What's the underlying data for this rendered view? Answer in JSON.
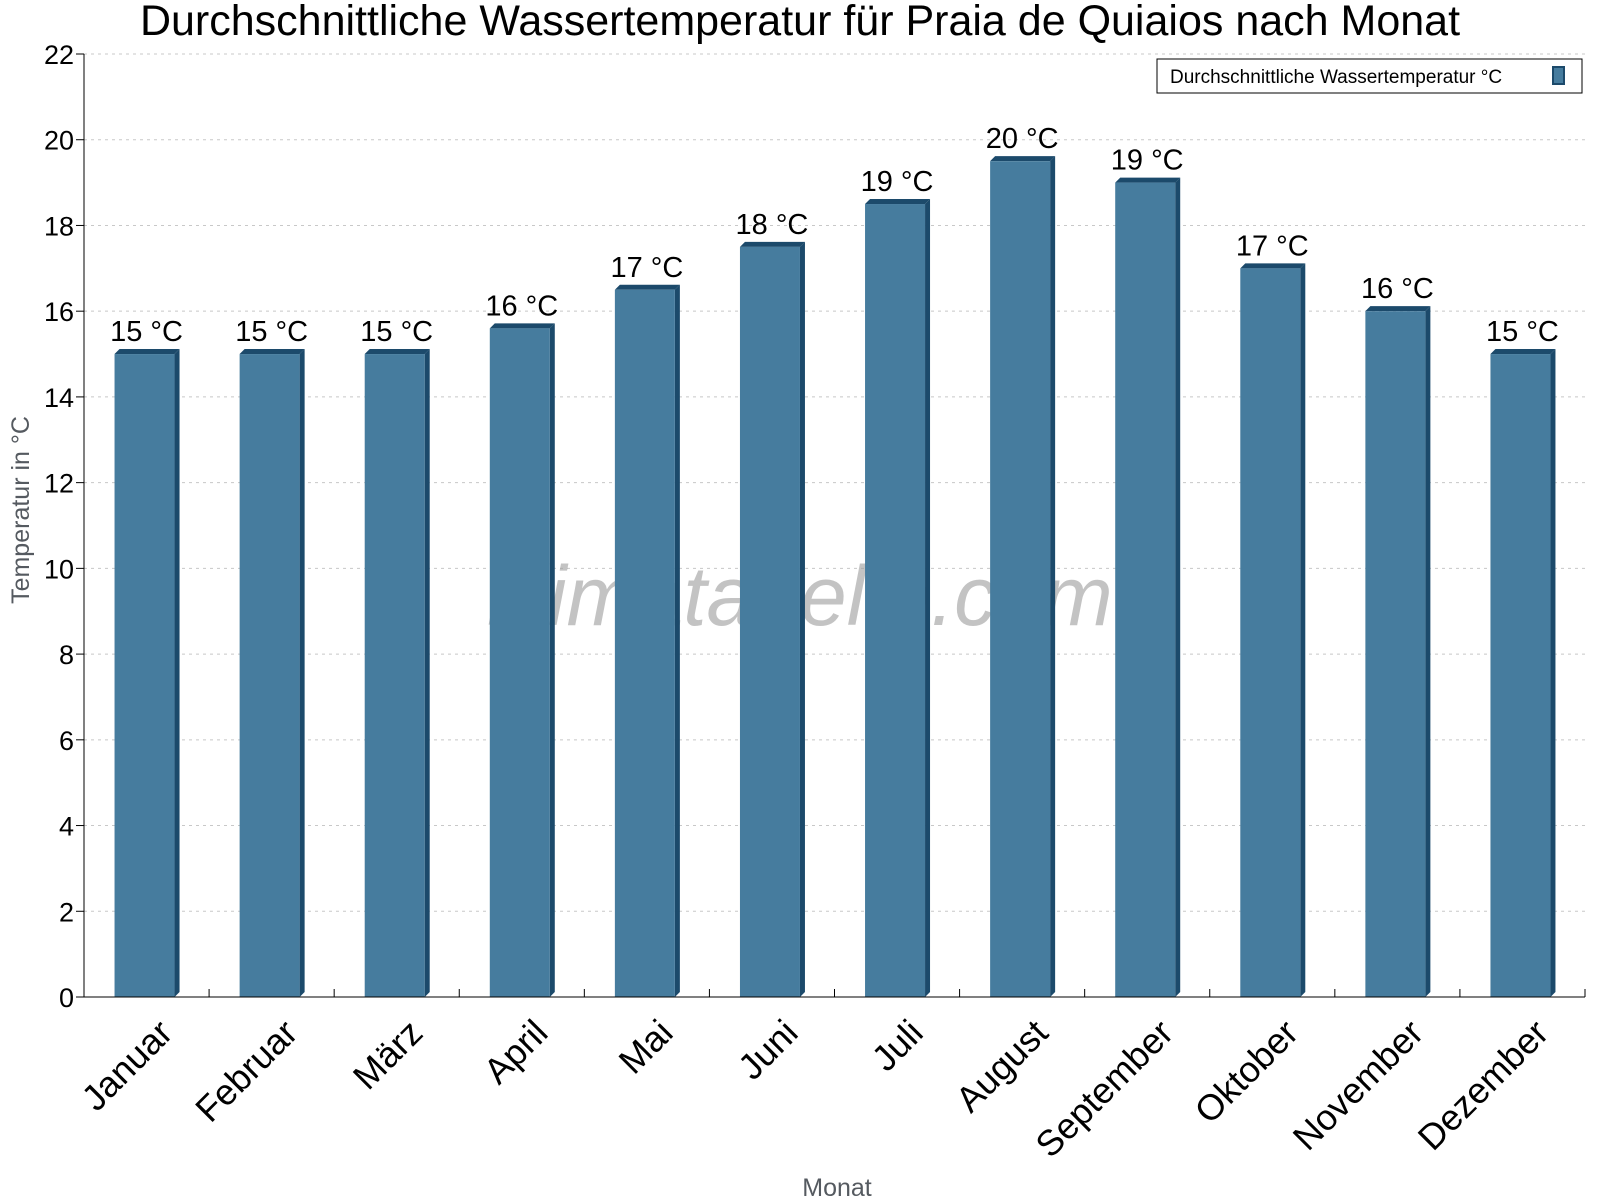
{
  "chart_data": {
    "type": "bar",
    "title": "Durchschnittliche Wassertemperatur für Praia de Quiaios nach Monat",
    "xlabel": "Monat",
    "ylabel": "Temperatur in °C",
    "categories": [
      "Januar",
      "Februar",
      "März",
      "April",
      "Mai",
      "Juni",
      "Juli",
      "August",
      "September",
      "Oktober",
      "November",
      "Dezember"
    ],
    "series": [
      {
        "name": "Durchschnittliche Wassertemperatur °C",
        "values": [
          15,
          15,
          15,
          15.6,
          16.5,
          17.5,
          18.5,
          19.5,
          19,
          17,
          16,
          15
        ],
        "labels": [
          "15 °C",
          "15 °C",
          "15 °C",
          "16 °C",
          "17 °C",
          "18 °C",
          "19 °C",
          "20 °C",
          "19 °C",
          "17 °C",
          "16 °C",
          "15 °C"
        ]
      }
    ],
    "ylim": [
      0,
      22
    ],
    "yticks": [
      "0",
      "2",
      "4",
      "6",
      "8",
      "10",
      "12",
      "14",
      "16",
      "18",
      "20",
      "22"
    ],
    "grid": true,
    "legend_position": "top-right",
    "colors": {
      "bar": "#467c9e",
      "bar_side": "#1c4a6b",
      "grid": "#c8c8c8"
    }
  },
  "watermark": "klimatabelle.com"
}
